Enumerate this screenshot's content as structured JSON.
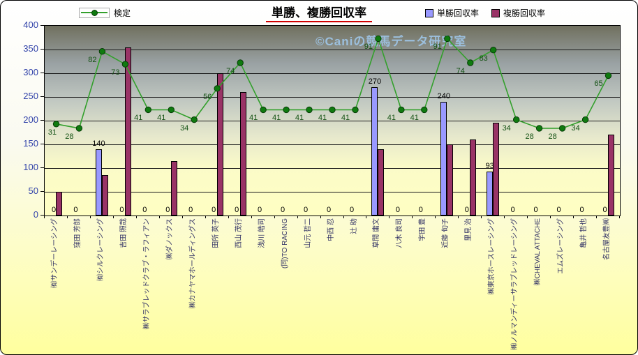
{
  "title": "単勝、複勝回収率",
  "watermark": "©Caniの競馬データ研究室",
  "legend": {
    "line": "検定",
    "series1": "単勝回収率",
    "series2": "複勝回収率"
  },
  "colors": {
    "tansho_bar": "#9999FF",
    "fukusho_bar": "#993366",
    "kentei_line": "#33A02C",
    "kentei_marker": "#0F7A0F",
    "kentei_label_text": "#145214",
    "axis_text": "#3344AA",
    "category_text": "#333366",
    "watermark_text": "#9FC6E8",
    "title_underline": "#D00000"
  },
  "chart_data": {
    "type": "bar",
    "title": "単勝、複勝回収率",
    "xlabel": "",
    "ylabel": "",
    "ylim": [
      0,
      400
    ],
    "ytick_step": 50,
    "yticks": [
      0,
      50,
      100,
      150,
      200,
      250,
      300,
      350,
      400
    ],
    "grid": true,
    "legend_position": "top",
    "categories": [
      "㈲サンデーレーシング",
      "窪田 芳郎",
      "㈲シルクレーシング",
      "吉田 照哉",
      "㈱サラブレッドクラブ・ラフィアン",
      "㈱ダノックス",
      "㈱カナヤマホールディングス",
      "田所 英子",
      "西山 茂行",
      "浅川 皓司",
      "(同)TO RACING",
      "山元 哲二",
      "中西 忍",
      "辻 助",
      "草間 庸文",
      "八木 良司",
      "宇田 豊",
      "近藤 旬子",
      "里見 治",
      "㈱東京ホースレーシング",
      "㈱ノルマンディーサラブレッドレーシング",
      "㈱CHEVAL ATTACHE",
      "エムズレーシング",
      "亀井 哲也",
      "名古屋友豊㈱"
    ],
    "series": [
      {
        "name": "単勝回収率",
        "type": "bar",
        "color": "#9999FF",
        "labels_shown": true,
        "values": [
          0,
          0,
          140,
          0,
          0,
          0,
          0,
          0,
          0,
          0,
          0,
          0,
          0,
          0,
          270,
          0,
          0,
          240,
          0,
          93,
          0,
          0,
          0,
          0,
          0
        ]
      },
      {
        "name": "複勝回収率",
        "type": "bar",
        "color": "#993366",
        "labels_shown": false,
        "values": [
          50,
          0,
          85,
          355,
          0,
          115,
          0,
          300,
          260,
          0,
          0,
          0,
          0,
          0,
          140,
          0,
          0,
          150,
          160,
          195,
          0,
          0,
          0,
          0,
          170
        ]
      },
      {
        "name": "検定",
        "type": "line",
        "color": "#33A02C",
        "marker_color": "#0F7A0F",
        "display_labels": [
          "31",
          "28",
          "82",
          "73",
          "41",
          "41",
          "34",
          "56",
          "74",
          "41",
          "41",
          "41",
          "41",
          "41",
          "91",
          "41",
          "41",
          "91",
          "74",
          "83",
          "34",
          "28",
          "28",
          "34",
          "65"
        ],
        "plotted_values": [
          193,
          184,
          346,
          319,
          223,
          223,
          202,
          268,
          322,
          223,
          223,
          223,
          223,
          223,
          373,
          223,
          223,
          373,
          322,
          349,
          202,
          184,
          184,
          202,
          295
        ]
      }
    ]
  }
}
